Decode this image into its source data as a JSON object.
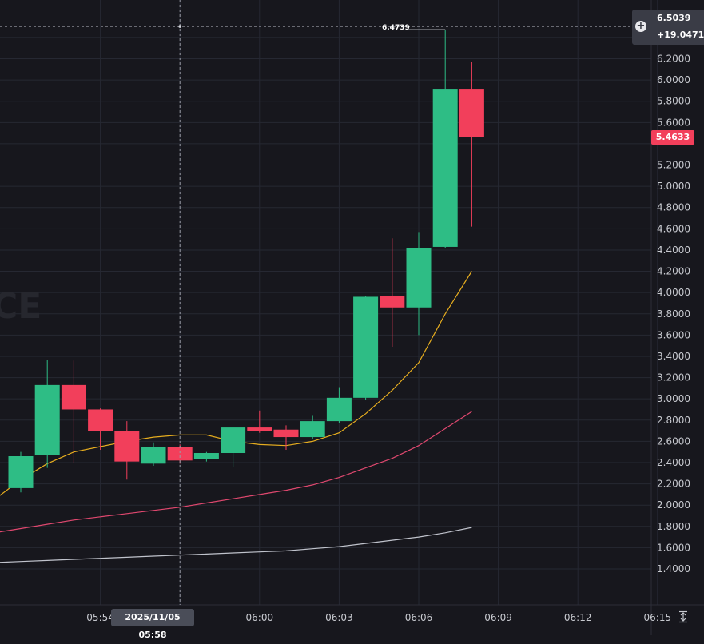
{
  "watermark": "CE",
  "crosshair": {
    "price": "6.5039",
    "change": "+19.0471%",
    "time": "2025/11/05 05:58"
  },
  "last_price": "5.4633",
  "high_label": "6.4739",
  "colors": {
    "background": "#17171d",
    "grid": "#262832",
    "up": "#2ebd85",
    "down": "#f23f5b",
    "ma_fast": "#e6ad1f",
    "ma_mid": "#e0486f",
    "ma_slow": "#c0c3cc"
  },
  "icons": [
    "plus-circle-icon",
    "auto-scale-icon"
  ],
  "chart_data": {
    "type": "candlestick",
    "x_tick_labels": [
      "05:54",
      "06:00",
      "06:03",
      "06:06",
      "06:09",
      "06:12",
      "06:15"
    ],
    "y_tick_labels": [
      "6.2000",
      "6.0000",
      "5.8000",
      "5.6000",
      "5.2000",
      "5.0000",
      "4.8000",
      "4.6000",
      "4.4000",
      "4.2000",
      "4.0000",
      "3.8000",
      "3.6000",
      "3.4000",
      "3.2000",
      "3.0000",
      "2.8000",
      "2.6000",
      "2.4000",
      "2.2000",
      "2.0000",
      "1.8000",
      "1.6000",
      "1.4000"
    ],
    "ylim": [
      1.2,
      6.7
    ],
    "grid": true,
    "candles": [
      {
        "time": "05:51",
        "open": 2.16,
        "close": 2.46,
        "high": 2.5,
        "low": 2.12
      },
      {
        "time": "05:52",
        "open": 2.47,
        "close": 3.13,
        "high": 3.37,
        "low": 2.35
      },
      {
        "time": "05:53",
        "open": 3.13,
        "close": 2.9,
        "high": 3.36,
        "low": 2.4
      },
      {
        "time": "05:54",
        "open": 2.9,
        "close": 2.7,
        "high": 2.91,
        "low": 2.52
      },
      {
        "time": "05:55",
        "open": 2.7,
        "close": 2.41,
        "high": 2.79,
        "low": 2.24
      },
      {
        "time": "05:56",
        "open": 2.39,
        "close": 2.55,
        "high": 2.59,
        "low": 2.37
      },
      {
        "time": "05:57",
        "open": 2.55,
        "close": 2.42,
        "high": 2.57,
        "low": 2.39
      },
      {
        "time": "05:58",
        "open": 2.43,
        "close": 2.49,
        "high": 2.5,
        "low": 2.41
      },
      {
        "time": "05:59",
        "open": 2.49,
        "close": 2.73,
        "high": 2.73,
        "low": 2.36
      },
      {
        "time": "06:00",
        "open": 2.73,
        "close": 2.7,
        "high": 2.89,
        "low": 2.68
      },
      {
        "time": "06:01",
        "open": 2.71,
        "close": 2.64,
        "high": 2.75,
        "low": 2.52
      },
      {
        "time": "06:02",
        "open": 2.64,
        "close": 2.79,
        "high": 2.84,
        "low": 2.62
      },
      {
        "time": "06:03",
        "open": 2.79,
        "close": 3.01,
        "high": 3.11,
        "low": 2.77
      },
      {
        "time": "06:04",
        "open": 3.01,
        "close": 3.96,
        "high": 3.97,
        "low": 2.99
      },
      {
        "time": "06:05",
        "open": 3.97,
        "close": 3.86,
        "high": 4.51,
        "low": 3.49
      },
      {
        "time": "06:06",
        "open": 3.86,
        "close": 4.42,
        "high": 4.57,
        "low": 3.6
      },
      {
        "time": "06:07",
        "open": 4.43,
        "close": 5.91,
        "high": 6.4739,
        "low": 4.42
      },
      {
        "time": "06:08",
        "open": 5.91,
        "close": 5.4633,
        "high": 6.17,
        "low": 4.62
      }
    ],
    "series": [
      {
        "values": [
          2.05,
          2.24,
          2.39,
          2.5,
          2.55,
          2.6,
          2.64,
          2.66,
          2.66,
          2.6,
          2.57,
          2.56,
          2.6,
          2.68,
          2.86,
          3.08,
          3.34,
          3.8,
          4.2
        ]
      },
      {
        "values": [
          1.7,
          1.74,
          1.78,
          1.82,
          1.86,
          1.89,
          1.92,
          1.95,
          1.98,
          2.02,
          2.06,
          2.1,
          2.14,
          2.19,
          2.26,
          2.35,
          2.44,
          2.56,
          2.72,
          2.88
        ]
      },
      {
        "values": [
          1.43,
          1.44,
          1.45,
          1.46,
          1.47,
          1.48,
          1.49,
          1.5,
          1.51,
          1.52,
          1.53,
          1.54,
          1.55,
          1.56,
          1.57,
          1.59,
          1.61,
          1.64,
          1.67,
          1.7,
          1.74,
          1.79
        ]
      }
    ]
  }
}
